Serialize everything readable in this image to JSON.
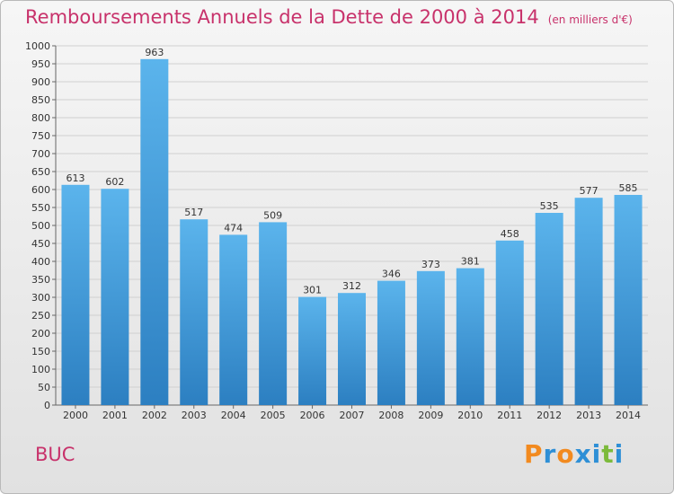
{
  "header": {
    "title": "Remboursements Annuels de la Dette de 2000 à 2014",
    "subtitle": "(en milliers d'€)"
  },
  "footer": {
    "commune": "BUC",
    "logo": "Proxiti",
    "logo_colors": [
      "#f28a1f",
      "#2e8fd6",
      "#f28a1f",
      "#2e8fd6",
      "#2e8fd6",
      "#7cba3b",
      "#2e8fd6"
    ]
  },
  "colors": {
    "title": "#c8326b",
    "bar_light": "#5bb4ec",
    "bar_dark": "#2c7fc1",
    "grid": "#d0d0d0"
  },
  "chart_data": {
    "type": "bar",
    "title": "Remboursements Annuels de la Dette de 2000 à 2014",
    "subtitle": "(en milliers d'€)",
    "categories": [
      "2000",
      "2001",
      "2002",
      "2003",
      "2004",
      "2005",
      "2006",
      "2007",
      "2008",
      "2009",
      "2010",
      "2011",
      "2012",
      "2013",
      "2014"
    ],
    "values": [
      613,
      602,
      963,
      517,
      474,
      509,
      301,
      312,
      346,
      373,
      381,
      458,
      535,
      577,
      585
    ],
    "ylim": [
      0,
      1000
    ],
    "yticks": [
      0,
      50,
      100,
      150,
      200,
      250,
      300,
      350,
      400,
      450,
      500,
      550,
      600,
      650,
      700,
      750,
      800,
      850,
      900,
      950,
      1000
    ],
    "grid": true,
    "xlabel": "",
    "ylabel": ""
  }
}
